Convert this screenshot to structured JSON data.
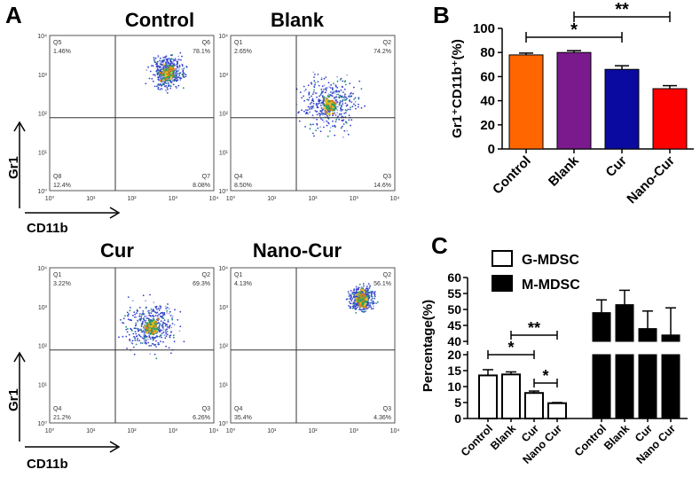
{
  "panel_labels": {
    "a": "A",
    "b": "B",
    "c": "C"
  },
  "flow": {
    "axis_x": "CD11b",
    "axis_y": "Gr1",
    "tick_labels": [
      "10⁰",
      "10¹",
      "10²",
      "10³",
      "10⁴"
    ],
    "plots": [
      {
        "title": "Control",
        "quadrants": [
          {
            "label": "Q5",
            "pct": "1.46%"
          },
          {
            "label": "Q6",
            "pct": "78.1%"
          },
          {
            "label": "Q8",
            "pct": "12.4%"
          },
          {
            "label": "Q7",
            "pct": "8.08%"
          }
        ]
      },
      {
        "title": "Blank",
        "quadrants": [
          {
            "label": "Q1",
            "pct": "2.65%"
          },
          {
            "label": "Q2",
            "pct": "74.2%"
          },
          {
            "label": "Q4",
            "pct": "8.50%"
          },
          {
            "label": "Q3",
            "pct": "14.6%"
          }
        ]
      },
      {
        "title": "Cur",
        "quadrants": [
          {
            "label": "Q1",
            "pct": "3.22%"
          },
          {
            "label": "Q2",
            "pct": "69.3%"
          },
          {
            "label": "Q4",
            "pct": "21.2%"
          },
          {
            "label": "Q3",
            "pct": "6.26%"
          }
        ]
      },
      {
        "title": "Nano-Cur",
        "quadrants": [
          {
            "label": "Q1",
            "pct": "4.13%"
          },
          {
            "label": "Q2",
            "pct": "56.1%"
          },
          {
            "label": "Q4",
            "pct": "35.4%"
          },
          {
            "label": "Q3",
            "pct": "4.36%"
          }
        ]
      }
    ]
  },
  "chart_data": [
    {
      "type": "bar",
      "panel": "B",
      "ylabel": "Gr1⁺CD11b⁺(%)",
      "ylim": [
        0,
        100
      ],
      "yticks": [
        "0",
        "20",
        "40",
        "60",
        "80",
        "100"
      ],
      "categories": [
        "Control",
        "Blank",
        "Cur",
        "Nano-Cur"
      ],
      "values": [
        78,
        80,
        66,
        50
      ],
      "errors": [
        1.5,
        1.5,
        3,
        2.5
      ],
      "colors": [
        "#ff6600",
        "#7a1a8c",
        "#0a0aa0",
        "#ff0000"
      ],
      "significance": [
        {
          "from": "Control",
          "to": "Cur",
          "label": "*"
        },
        {
          "from": "Blank",
          "to": "Nano-Cur",
          "label": "**"
        }
      ]
    },
    {
      "type": "bar",
      "panel": "C",
      "ylabel": "Percentage(%)",
      "axis_break": true,
      "ylim_lower": [
        0,
        20
      ],
      "ylim_upper": [
        40,
        60
      ],
      "yticks_lower": [
        "0",
        "5",
        "10",
        "15",
        "20"
      ],
      "yticks_upper": [
        "40",
        "45",
        "50",
        "55",
        "60"
      ],
      "categories": [
        "Control",
        "Blank",
        "Cur",
        "Nano Cur"
      ],
      "series": [
        {
          "name": "G-MDSC",
          "fill": "#ffffff",
          "values": [
            13.5,
            13.8,
            8,
            4.8
          ],
          "errors": [
            1.8,
            0.8,
            0.6,
            0.2
          ]
        },
        {
          "name": "M-MDSC",
          "fill": "#000000",
          "values": [
            49,
            51.5,
            44,
            42
          ],
          "errors": [
            4,
            4.5,
            5.5,
            8.5
          ]
        }
      ],
      "significance": [
        {
          "from": "Control",
          "to": "Cur",
          "label": "*"
        },
        {
          "from": "Blank",
          "to": "Nano Cur",
          "label": "**"
        },
        {
          "from": "Cur",
          "to": "Nano Cur",
          "label": "*"
        }
      ]
    }
  ]
}
